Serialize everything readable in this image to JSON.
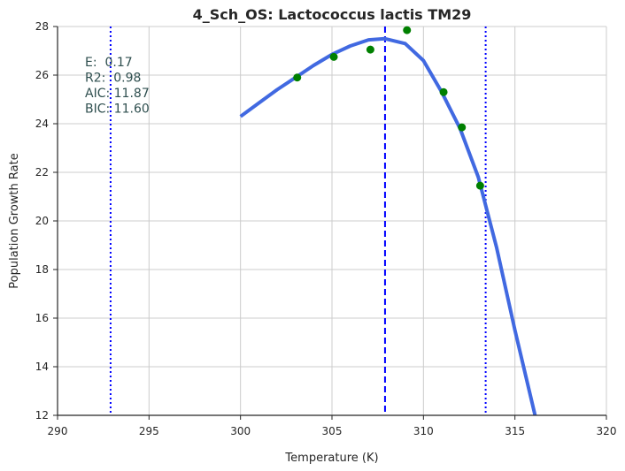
{
  "chart_data": {
    "type": "line",
    "title": "4_Sch_OS: Lactococcus lactis TM29",
    "xlabel": "Temperature (K)",
    "ylabel": "Population Growth Rate",
    "xlim": [
      290,
      320
    ],
    "ylim": [
      12,
      28
    ],
    "xticks": [
      290,
      295,
      300,
      305,
      310,
      315,
      320
    ],
    "yticks": [
      12,
      14,
      16,
      18,
      20,
      22,
      24,
      26,
      28
    ],
    "grid": true,
    "colors": {
      "fit_line": "#4169e1",
      "points": "#008000",
      "vlines": "#0000ff",
      "annotation": "#2f4f4f"
    },
    "fitted_curve": {
      "x": [
        300,
        301,
        302,
        303,
        304,
        305,
        306,
        307,
        307.9,
        309,
        310,
        311,
        312,
        313,
        314,
        315,
        316.1
      ],
      "y": [
        24.3,
        24.85,
        25.4,
        25.9,
        26.4,
        26.85,
        27.2,
        27.45,
        27.5,
        27.3,
        26.6,
        25.3,
        23.8,
        21.8,
        18.9,
        15.5,
        12.0
      ]
    },
    "scatter": {
      "x": [
        303.1,
        305.1,
        307.1,
        309.1,
        311.1,
        312.1,
        313.1
      ],
      "y": [
        25.9,
        26.75,
        27.05,
        27.85,
        25.3,
        23.85,
        21.45
      ]
    },
    "vlines": [
      {
        "x": 292.9,
        "style": "dotted"
      },
      {
        "x": 307.9,
        "style": "dashed"
      },
      {
        "x": 313.4,
        "style": "dotted"
      }
    ],
    "annotations": [
      "E:  0.17",
      "R2:  0.98",
      "AIC: 11.87",
      "BIC: 11.60"
    ]
  }
}
